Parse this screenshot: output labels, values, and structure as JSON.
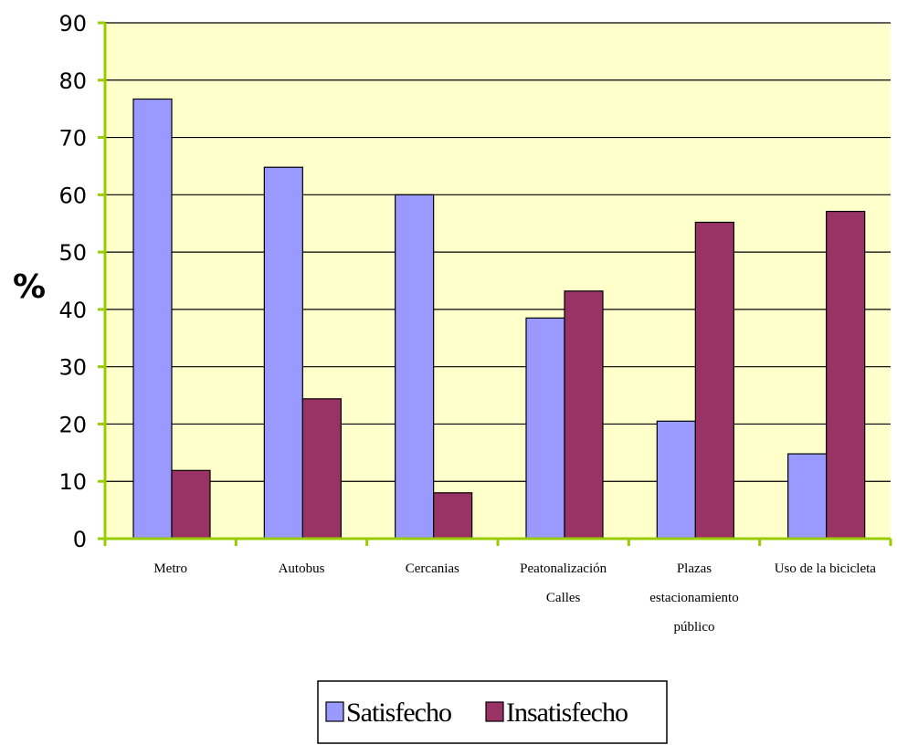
{
  "chart_data": {
    "type": "bar",
    "categories": [
      [
        "Metro"
      ],
      [
        "Autobus"
      ],
      [
        "Cercanias"
      ],
      [
        "Peatonalización",
        "Calles"
      ],
      [
        "Plazas",
        "estacionamiento",
        "público"
      ],
      [
        "Uso de la bicicleta"
      ]
    ],
    "series": [
      {
        "name": "Satisfecho",
        "color": "#9999ff",
        "values": [
          76.7,
          64.8,
          60.0,
          38.5,
          20.5,
          14.8
        ]
      },
      {
        "name": "Insatisfecho",
        "color": "#993366",
        "values": [
          11.9,
          24.4,
          8.0,
          43.2,
          55.2,
          57.1
        ]
      }
    ],
    "ylabel": "%",
    "xlabel": "",
    "ylim": [
      0,
      90
    ],
    "yticks": [
      0,
      10,
      20,
      30,
      40,
      50,
      60,
      70,
      80,
      90
    ],
    "plot_background": "#ffffcc",
    "axis_color": "#99cc00",
    "grid": true,
    "legend_position": "bottom"
  }
}
